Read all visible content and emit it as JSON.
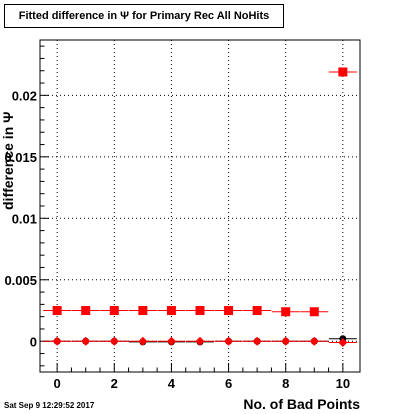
{
  "chart_data": {
    "type": "scatter",
    "title": "Fitted difference in  Ψ  for Primary Rec All NoHits",
    "xlabel": "No. of Bad Points",
    "ylabel": "difference in  Ψ",
    "xlim": [
      -0.6,
      10.6
    ],
    "ylim": [
      -0.0025,
      0.0245
    ],
    "x_ticks": [
      0,
      2,
      4,
      6,
      8,
      10
    ],
    "x_tick_labels": [
      "0",
      "2",
      "4",
      "6",
      "8",
      "10"
    ],
    "y_ticks": [
      0,
      0.005,
      0.01,
      0.015,
      0.02
    ],
    "y_tick_labels": [
      "0",
      "0.005",
      "0.01",
      "0.015",
      "0.02"
    ],
    "grid": true,
    "series": [
      {
        "marker": "square",
        "color": "#ff0000",
        "x": [
          0,
          1,
          2,
          3,
          4,
          5,
          6,
          7,
          8,
          9,
          10
        ],
        "y": [
          0.0025,
          0.0025,
          0.0025,
          0.0025,
          0.0025,
          0.0025,
          0.0025,
          0.0025,
          0.0024,
          0.0024,
          0.0219
        ]
      },
      {
        "marker": "circle",
        "color": "#000000",
        "x": [
          0,
          1,
          2,
          3,
          4,
          5,
          6,
          7,
          8,
          9,
          10
        ],
        "y": [
          0,
          0,
          0,
          -5e-05,
          -5e-05,
          -5e-05,
          0,
          0,
          0,
          0,
          0.0002
        ]
      },
      {
        "marker": "diamond",
        "color": "#ff0000",
        "x": [
          0,
          1,
          2,
          3,
          4,
          5,
          6,
          7,
          8,
          9,
          10
        ],
        "y": [
          0,
          0,
          0,
          0,
          0,
          0,
          0,
          0,
          0,
          0,
          -0.0001
        ]
      }
    ]
  },
  "timestamp": "Sat Sep  9 12:29:52 2017"
}
